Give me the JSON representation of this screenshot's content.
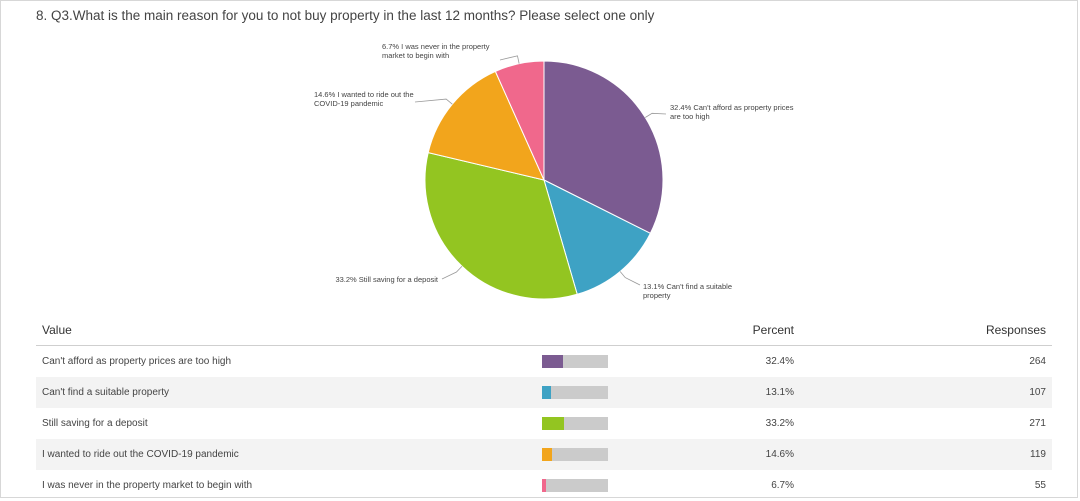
{
  "question": {
    "title": "8. Q3.What is the main reason for you to not buy property in the last 12 months? Please select one only"
  },
  "table": {
    "headers": {
      "value": "Value",
      "percent": "Percent",
      "responses": "Responses"
    }
  },
  "chart_data": {
    "type": "pie",
    "slices": [
      {
        "label": "Can't afford as property prices are too high",
        "pie_label": "32.4% Can't afford as property prices are too high",
        "percent": 32.4,
        "percent_text": "32.4%",
        "responses": 264,
        "color": "#7b5b91"
      },
      {
        "label": "Can't find a suitable property",
        "pie_label": "13.1% Can't find a suitable property",
        "percent": 13.1,
        "percent_text": "13.1%",
        "responses": 107,
        "color": "#3ea2c4"
      },
      {
        "label": "Still saving for a deposit",
        "pie_label": "33.2% Still saving for a deposit",
        "percent": 33.2,
        "percent_text": "33.2%",
        "responses": 271,
        "color": "#93c521"
      },
      {
        "label": "I wanted to ride out the COVID-19 pandemic",
        "pie_label": "14.6% I wanted to ride out the COVID-19 pandemic",
        "percent": 14.6,
        "percent_text": "14.6%",
        "responses": 119,
        "color": "#f2a51c"
      },
      {
        "label": "I was never in the property market to begin with",
        "pie_label": "6.7% I was never in the property market to begin with",
        "percent": 6.7,
        "percent_text": "6.7%",
        "responses": 55,
        "color": "#f0688c"
      }
    ]
  }
}
